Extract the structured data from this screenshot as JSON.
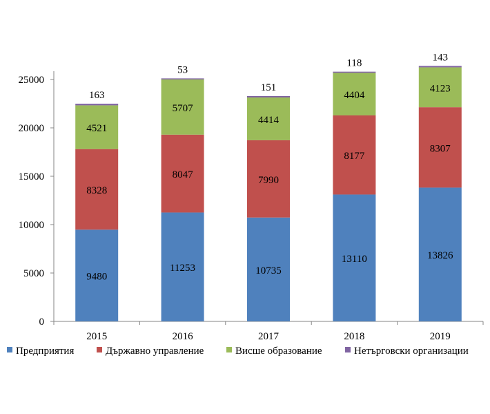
{
  "chart_data": {
    "type": "bar",
    "stacked": true,
    "categories": [
      "2015",
      "2016",
      "2017",
      "2018",
      "2019"
    ],
    "series": [
      {
        "name": "Предприятия",
        "color": "#4f81bd",
        "values": [
          9480,
          11253,
          10735,
          13110,
          13826
        ]
      },
      {
        "name": "Държавно управление",
        "color": "#c0504d",
        "values": [
          8328,
          8047,
          7990,
          8177,
          8307
        ]
      },
      {
        "name": "Висше образование",
        "color": "#9bbb59",
        "values": [
          4521,
          5707,
          4414,
          4404,
          4123
        ]
      },
      {
        "name": "Нетърговски организации",
        "color": "#8064a2",
        "values": [
          163,
          53,
          151,
          118,
          143
        ]
      }
    ],
    "ylim": [
      0,
      25000
    ],
    "yticks": [
      0,
      5000,
      10000,
      15000,
      20000,
      25000
    ],
    "grid": false,
    "legend_position": "bottom",
    "title": "",
    "xlabel": "",
    "ylabel": ""
  }
}
